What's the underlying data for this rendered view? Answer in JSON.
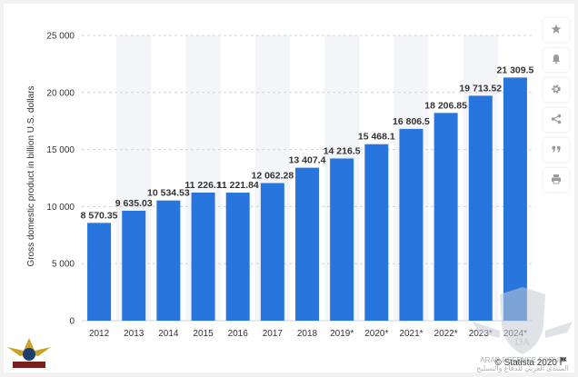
{
  "chart_data": {
    "type": "bar",
    "categories": [
      "2012",
      "2013",
      "2014",
      "2015",
      "2016",
      "2017",
      "2018",
      "2019*",
      "2020*",
      "2021*",
      "2022*",
      "2023*",
      "2024*"
    ],
    "values": [
      8570.35,
      9635.03,
      10534.53,
      11226.1,
      11221.84,
      12062.28,
      13407.4,
      14216.5,
      15468.1,
      16806.5,
      18206.85,
      19713.52,
      21309.5
    ],
    "value_labels": [
      "8 570.35",
      "9 635.03",
      "10 534.53",
      "11 226.1",
      "11 221.84",
      "12 062.28",
      "13 407.4",
      "14 216.5",
      "15 468.1",
      "16 806.5",
      "18 206.85",
      "19 713.52",
      "21 309.5"
    ],
    "ylabel": "Gross domestic product in billion U.S. dollars",
    "xlabel": "",
    "ylim": [
      0,
      25000
    ],
    "yticks": [
      0,
      5000,
      10000,
      15000,
      20000,
      25000
    ],
    "ytick_labels": [
      "0",
      "5 000",
      "10 000",
      "15 000",
      "20 000",
      "25 000"
    ],
    "grid": "dashed horizontal",
    "bar_color": "#2876dd",
    "alt_band_color": "#f4f5f8"
  },
  "toolbar": {
    "icons": [
      "star-icon",
      "bell-icon",
      "gear-icon",
      "share-icon",
      "quote-icon",
      "print-icon"
    ]
  },
  "credit": {
    "text": "© Statista 2020"
  },
  "watermark": {
    "text_left": "ARAB DEFENSE FORUM",
    "text_right": "المنتدى العربي للدفاع والتسليح"
  }
}
